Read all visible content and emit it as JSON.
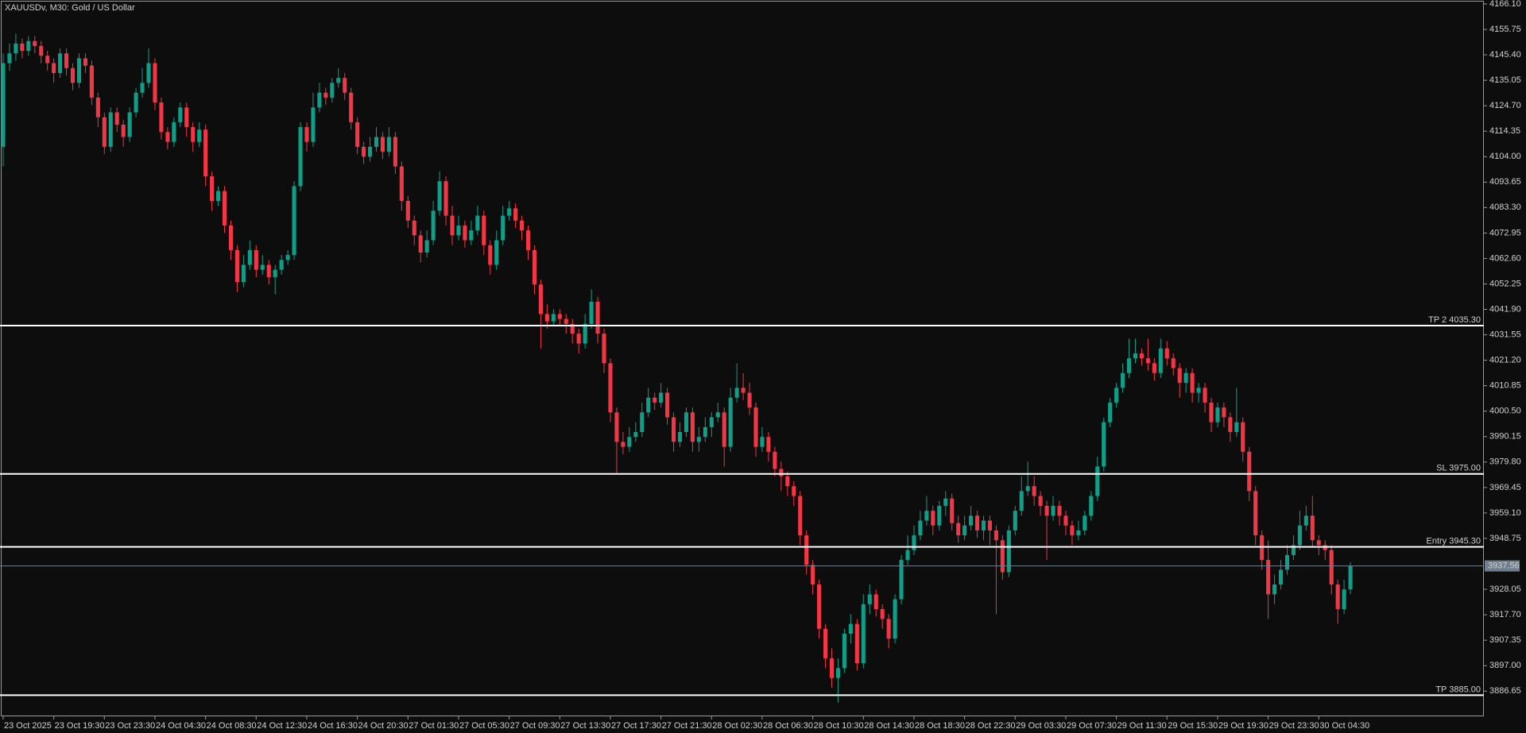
{
  "chart_data": {
    "type": "candlestick",
    "title": "XAUUSDv, M30:  Gold / US Dollar",
    "up_color": "#0f9e87",
    "down_color": "#f23645",
    "level_color": "#ffffff",
    "price_line_color": "#6f7f8f",
    "xlim": [
      -0.5,
      234.1
    ],
    "ylim": [
      3876.4,
      4167.7
    ],
    "xticks": [
      {
        "value": 0,
        "label": "23 Oct 2025"
      },
      {
        "value": 8,
        "label": "23 Oct 19:30"
      },
      {
        "value": 16,
        "label": "23 Oct 23:30"
      },
      {
        "value": 24,
        "label": "24 Oct 04:30"
      },
      {
        "value": 32,
        "label": "24 Oct 08:30"
      },
      {
        "value": 40,
        "label": "24 Oct 12:30"
      },
      {
        "value": 48,
        "label": "24 Oct 16:30"
      },
      {
        "value": 56,
        "label": "24 Oct 20:30"
      },
      {
        "value": 64,
        "label": "27 Oct 01:30"
      },
      {
        "value": 72,
        "label": "27 Oct 05:30"
      },
      {
        "value": 80,
        "label": "27 Oct 09:30"
      },
      {
        "value": 88,
        "label": "27 Oct 13:30"
      },
      {
        "value": 96,
        "label": "27 Oct 17:30"
      },
      {
        "value": 104,
        "label": "27 Oct 21:30"
      },
      {
        "value": 112,
        "label": "28 Oct 02:30"
      },
      {
        "value": 120,
        "label": "28 Oct 06:30"
      },
      {
        "value": 128,
        "label": "28 Oct 10:30"
      },
      {
        "value": 136,
        "label": "28 Oct 14:30"
      },
      {
        "value": 144,
        "label": "28 Oct 18:30"
      },
      {
        "value": 152,
        "label": "28 Oct 22:30"
      },
      {
        "value": 160,
        "label": "29 Oct 03:30"
      },
      {
        "value": 168,
        "label": "29 Oct 07:30"
      },
      {
        "value": 176,
        "label": "29 Oct 11:30"
      },
      {
        "value": 184,
        "label": "29 Oct 15:30"
      },
      {
        "value": 192,
        "label": "29 Oct 19:30"
      },
      {
        "value": 200,
        "label": "29 Oct 23:30"
      },
      {
        "value": 208,
        "label": "30 Oct 04:30"
      }
    ],
    "yticks": [
      {
        "value": 4166.1,
        "label": "4166.10"
      },
      4155.75,
      {
        "value": 4145.4,
        "label": "4145.40"
      },
      4135.05,
      {
        "value": 4124.7,
        "label": "4124.70"
      },
      4114.35,
      {
        "value": 4104,
        "label": "4104.00"
      },
      4093.65,
      {
        "value": 4083.3,
        "label": "4083.30"
      },
      4072.95,
      {
        "value": 4062.6,
        "label": "4062.60"
      },
      4052.25,
      {
        "value": 4041.9,
        "label": "4041.90"
      },
      4031.55,
      {
        "value": 4021.2,
        "label": "4021.20"
      },
      4010.85,
      {
        "value": 4000.5,
        "label": "4000.50"
      },
      3990.15,
      {
        "value": 3979.8,
        "label": "3979.80"
      },
      3969.45,
      {
        "value": 3959.1,
        "label": "3959.10"
      },
      3948.75,
      3928.05,
      {
        "value": 3917.7,
        "label": "3917.70"
      },
      3907.35,
      {
        "value": 3897,
        "label": "3897.00"
      },
      3886.65
    ],
    "levels": [
      {
        "label": "TP 2 4035.30",
        "value": 4035.3
      },
      {
        "label": "SL 3975.00",
        "value": 3975
      },
      {
        "label": "Entry 3945.30",
        "value": 3945.3
      },
      {
        "label": "TP 3885.00",
        "value": 3885
      }
    ],
    "price_line": 3937.56,
    "open": [
      4108,
      4142,
      4146,
      4150,
      4147,
      4151,
      4149,
      4145,
      4142,
      4138,
      4146,
      4140,
      4134,
      4144,
      4141,
      4128,
      4120,
      4108,
      4122,
      4117,
      4112,
      4122,
      4130,
      4134,
      4142,
      4126,
      4114,
      4110,
      4118,
      4124,
      4116,
      4110,
      4115,
      4096,
      4086,
      4090,
      4076,
      4066,
      4053,
      4060,
      4066,
      4058,
      4060,
      4055,
      4058,
      4062,
      4064,
      4092,
      4116,
      4110,
      4124,
      4130,
      4128,
      4134,
      4136,
      4130,
      4118,
      4108,
      4104,
      4108,
      4112,
      4106,
      4112,
      4100,
      4086,
      4078,
      4072,
      4065,
      4070,
      4082,
      4094,
      4080,
      4072,
      4076,
      4070,
      4074,
      4080,
      4068,
      4060,
      4070,
      4080,
      4083,
      4078,
      4074,
      4066,
      4052,
      4040,
      4037,
      4040,
      4038,
      4036,
      4032,
      4028,
      4036,
      4045,
      4032,
      4020,
      4000,
      3988,
      3986,
      3990,
      3992,
      4000,
      4006,
      4004,
      4008,
      3998,
      3988,
      3992,
      4000,
      3988,
      3990,
      3994,
      3998,
      4000,
      3986,
      4006,
      4010,
      4008,
      4002,
      3986,
      3990,
      3984,
      3977,
      3974,
      3970,
      3966,
      3950,
      3938,
      3930,
      3912,
      3900,
      3892,
      3896,
      3910,
      3914,
      3898,
      3922,
      3926,
      3920,
      3916,
      3908,
      3924,
      3940,
      3944,
      3950,
      3956,
      3960,
      3954,
      3962,
      3965,
      3955,
      3950,
      3954,
      3958,
      3952,
      3956,
      3952,
      3948,
      3935,
      3952,
      3960,
      3968,
      3970,
      3966,
      3962,
      3958,
      3962,
      3958,
      3954,
      3950,
      3952,
      3958,
      3966,
      3978,
      3996,
      4004,
      4010,
      4016,
      4022,
      4024,
      4022,
      4020,
      4016,
      4026,
      4022,
      4018,
      4012,
      4016,
      4008,
      4010,
      4004,
      3996,
      4002,
      3998,
      3992,
      3996,
      3984,
      3968,
      3950,
      3940,
      3926,
      3930,
      3936,
      3942,
      3946,
      3954,
      3958,
      3948,
      3946,
      3944,
      3930,
      3920,
      3928
    ],
    "high": [
      4146,
      4150,
      4154,
      4152,
      4153,
      4153,
      4151,
      4147,
      4144,
      4148,
      4148,
      4142,
      4146,
      4146,
      4143,
      4130,
      4122,
      4124,
      4124,
      4119,
      4124,
      4132,
      4140,
      4148,
      4144,
      4128,
      4116,
      4120,
      4126,
      4126,
      4118,
      4118,
      4117,
      4098,
      4092,
      4092,
      4078,
      4068,
      4064,
      4070,
      4068,
      4064,
      4062,
      4060,
      4064,
      4066,
      4094,
      4118,
      4118,
      4130,
      4134,
      4132,
      4136,
      4140,
      4138,
      4132,
      4120,
      4110,
      4112,
      4116,
      4114,
      4116,
      4114,
      4102,
      4088,
      4080,
      4074,
      4074,
      4086,
      4098,
      4096,
      4084,
      4080,
      4078,
      4078,
      4084,
      4082,
      4070,
      4074,
      4084,
      4086,
      4085,
      4080,
      4076,
      4068,
      4054,
      4044,
      4042,
      4042,
      4040,
      4038,
      4034,
      4040,
      4050,
      4047,
      4034,
      4022,
      4002,
      3992,
      3994,
      3996,
      4004,
      4010,
      4008,
      4012,
      4010,
      4000,
      3996,
      4002,
      4002,
      3994,
      3998,
      4000,
      4004,
      4002,
      4010,
      4020,
      4016,
      4012,
      4004,
      3994,
      3992,
      3986,
      3980,
      3976,
      3972,
      3968,
      3952,
      3940,
      3932,
      3914,
      3904,
      3900,
      3912,
      3918,
      3916,
      3926,
      3930,
      3928,
      3922,
      3918,
      3926,
      3942,
      3950,
      3954,
      3960,
      3966,
      3962,
      3964,
      3968,
      3967,
      3958,
      3958,
      3962,
      3960,
      3958,
      3958,
      3954,
      3950,
      3954,
      3962,
      3974,
      3980,
      3974,
      3968,
      3964,
      3966,
      3964,
      3960,
      3956,
      3956,
      3960,
      3968,
      3982,
      3998,
      4006,
      4012,
      4020,
      4030,
      4030,
      4026,
      4030,
      4022,
      4030,
      4029,
      4024,
      4020,
      4018,
      4018,
      4012,
      4012,
      4006,
      4004,
      4004,
      4000,
      4010,
      3998,
      3986,
      3970,
      3952,
      3948,
      3934,
      3940,
      3946,
      3950,
      3960,
      3962,
      3966,
      3950,
      3948,
      3946,
      3932,
      3932,
      3939
    ],
    "low": [
      4100,
      4139,
      4143,
      4144,
      4145,
      4146,
      4142,
      4139,
      4134,
      4136,
      4137,
      4131,
      4132,
      4138,
      4125,
      4116,
      4105,
      4106,
      4114,
      4108,
      4110,
      4120,
      4128,
      4132,
      4123,
      4111,
      4107,
      4108,
      4116,
      4112,
      4106,
      4108,
      4092,
      4082,
      4084,
      4073,
      4062,
      4049,
      4051,
      4058,
      4055,
      4056,
      4052,
      4048,
      4056,
      4060,
      4062,
      4090,
      4106,
      4108,
      4122,
      4125,
      4126,
      4132,
      4127,
      4115,
      4105,
      4101,
      4102,
      4106,
      4103,
      4104,
      4097,
      4082,
      4075,
      4068,
      4061,
      4063,
      4068,
      4080,
      4076,
      4068,
      4070,
      4067,
      4068,
      4072,
      4064,
      4056,
      4058,
      4068,
      4078,
      4075,
      4070,
      4062,
      4048,
      4026,
      4034,
      4035,
      4035,
      4032,
      4028,
      4024,
      4026,
      4034,
      4028,
      4016,
      3996,
      3975,
      3983,
      3984,
      3988,
      3990,
      3998,
      4001,
      4002,
      3995,
      3984,
      3986,
      3990,
      3984,
      3984,
      3988,
      3990,
      3996,
      3978,
      3984,
      4004,
      4005,
      3999,
      3982,
      3984,
      3980,
      3974,
      3968,
      3966,
      3962,
      3946,
      3934,
      3926,
      3908,
      3896,
      3888,
      3882,
      3894,
      3906,
      3895,
      3896,
      3918,
      3917,
      3912,
      3904,
      3906,
      3922,
      3938,
      3942,
      3948,
      3954,
      3950,
      3952,
      3958,
      3952,
      3947,
      3948,
      3952,
      3949,
      3948,
      3946,
      3918,
      3932,
      3933,
      3950,
      3958,
      3966,
      3962,
      3958,
      3940,
      3956,
      3954,
      3950,
      3946,
      3948,
      3950,
      3956,
      3964,
      3976,
      3994,
      4002,
      4008,
      4014,
      4020,
      4019,
      4017,
      4013,
      4014,
      4019,
      4015,
      4006,
      4008,
      4004,
      4004,
      4000,
      3992,
      3994,
      3994,
      3988,
      3990,
      3980,
      3964,
      3946,
      3936,
      3916,
      3922,
      3928,
      3934,
      3940,
      3944,
      3952,
      3945,
      3942,
      3940,
      3926,
      3914,
      3918,
      3926
    ],
    "close": [
      4142,
      4146,
      4150,
      4147,
      4151,
      4149,
      4145,
      4142,
      4138,
      4146,
      4140,
      4134,
      4144,
      4141,
      4128,
      4120,
      4108,
      4122,
      4117,
      4112,
      4122,
      4130,
      4134,
      4142,
      4126,
      4114,
      4110,
      4118,
      4124,
      4116,
      4110,
      4115,
      4096,
      4086,
      4090,
      4076,
      4066,
      4053,
      4060,
      4066,
      4058,
      4060,
      4055,
      4058,
      4062,
      4064,
      4092,
      4116,
      4110,
      4124,
      4130,
      4128,
      4134,
      4136,
      4130,
      4118,
      4108,
      4104,
      4108,
      4112,
      4106,
      4112,
      4100,
      4086,
      4078,
      4072,
      4065,
      4070,
      4082,
      4094,
      4080,
      4072,
      4076,
      4070,
      4074,
      4080,
      4068,
      4060,
      4070,
      4080,
      4083,
      4078,
      4074,
      4066,
      4052,
      4040,
      4037,
      4040,
      4038,
      4036,
      4032,
      4028,
      4036,
      4045,
      4032,
      4020,
      4000,
      3988,
      3986,
      3990,
      3992,
      4000,
      4006,
      4004,
      4008,
      3998,
      3988,
      3992,
      4000,
      3988,
      3990,
      3994,
      3998,
      4000,
      3986,
      4006,
      4010,
      4008,
      4002,
      3986,
      3990,
      3984,
      3977,
      3974,
      3970,
      3966,
      3950,
      3938,
      3930,
      3912,
      3900,
      3892,
      3896,
      3910,
      3914,
      3898,
      3922,
      3926,
      3920,
      3916,
      3908,
      3924,
      3940,
      3944,
      3950,
      3956,
      3960,
      3954,
      3962,
      3965,
      3955,
      3950,
      3954,
      3958,
      3952,
      3956,
      3952,
      3948,
      3935,
      3952,
      3960,
      3968,
      3970,
      3966,
      3962,
      3958,
      3962,
      3958,
      3954,
      3950,
      3952,
      3958,
      3966,
      3978,
      3996,
      4004,
      4010,
      4016,
      4022,
      4024,
      4022,
      4020,
      4016,
      4026,
      4022,
      4018,
      4012,
      4016,
      4008,
      4010,
      4004,
      3996,
      4002,
      3998,
      3992,
      3996,
      3984,
      3968,
      3950,
      3940,
      3926,
      3930,
      3936,
      3942,
      3946,
      3954,
      3958,
      3948,
      3946,
      3944,
      3930,
      3920,
      3928,
      3937.56
    ]
  }
}
